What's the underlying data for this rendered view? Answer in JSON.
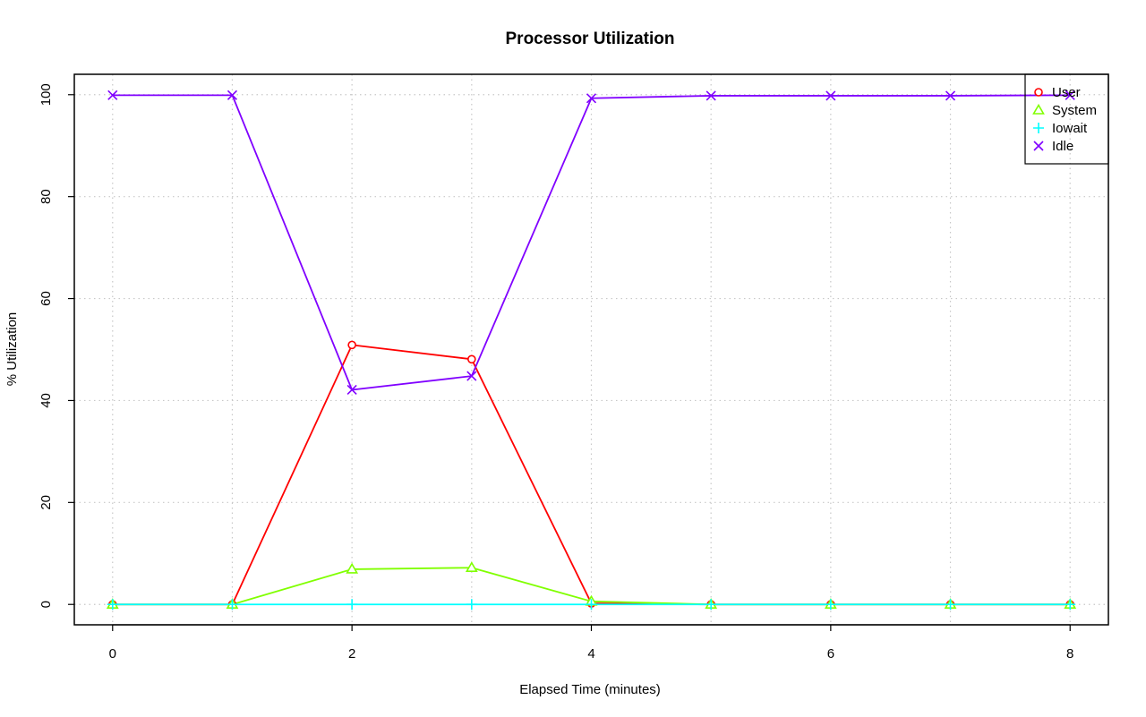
{
  "chart_data": {
    "type": "line",
    "title": "Processor Utilization",
    "xlabel": "Elapsed Time (minutes)",
    "ylabel": "% Utilization",
    "x": [
      0,
      1,
      2,
      3,
      4,
      5,
      6,
      7,
      8
    ],
    "xlim": [
      -0.32,
      8.32
    ],
    "ylim": [
      -4,
      104
    ],
    "xticks": [
      0,
      2,
      4,
      6,
      8
    ],
    "yticks": [
      0,
      20,
      40,
      60,
      80,
      100
    ],
    "grid": true,
    "legend_position": "top-right",
    "series": [
      {
        "name": "User",
        "color": "#ff0000",
        "marker": "circle",
        "values": [
          0,
          0,
          50.9,
          48.1,
          0.2,
          0,
          0,
          0,
          0
        ]
      },
      {
        "name": "System",
        "color": "#80ff00",
        "marker": "triangle",
        "values": [
          0,
          0,
          6.9,
          7.2,
          0.6,
          0,
          0,
          0,
          0
        ]
      },
      {
        "name": "Iowait",
        "color": "#00ffff",
        "marker": "plus",
        "values": [
          0,
          0,
          0,
          0,
          0,
          0,
          0,
          0,
          0
        ]
      },
      {
        "name": "Idle",
        "color": "#8000ff",
        "marker": "cross",
        "values": [
          99.9,
          99.9,
          42.1,
          44.8,
          99.3,
          99.8,
          99.8,
          99.8,
          99.9
        ]
      }
    ]
  }
}
